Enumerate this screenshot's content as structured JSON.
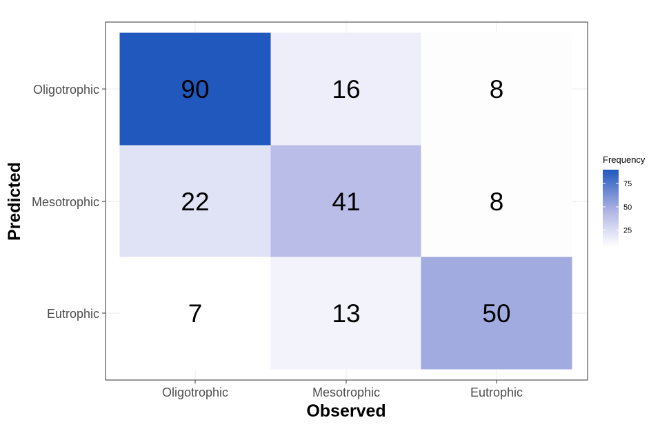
{
  "chart_data": {
    "type": "heatmap",
    "title": "",
    "xlabel": "Observed",
    "ylabel": "Predicted",
    "x_categories": [
      "Oligotrophic",
      "Mesotrophic",
      "Eutrophic"
    ],
    "y_categories": [
      "Oligotrophic",
      "Mesotrophic",
      "Eutrophic"
    ],
    "cells": [
      {
        "x": "Oligotrophic",
        "y": "Oligotrophic",
        "value": 90
      },
      {
        "x": "Mesotrophic",
        "y": "Oligotrophic",
        "value": 16
      },
      {
        "x": "Eutrophic",
        "y": "Oligotrophic",
        "value": 8
      },
      {
        "x": "Oligotrophic",
        "y": "Mesotrophic",
        "value": 22
      },
      {
        "x": "Mesotrophic",
        "y": "Mesotrophic",
        "value": 41
      },
      {
        "x": "Eutrophic",
        "y": "Mesotrophic",
        "value": 8
      },
      {
        "x": "Oligotrophic",
        "y": "Eutrophic",
        "value": 7
      },
      {
        "x": "Mesotrophic",
        "y": "Eutrophic",
        "value": 13
      },
      {
        "x": "Eutrophic",
        "y": "Eutrophic",
        "value": 50
      }
    ],
    "legend": {
      "title": "Frequency",
      "ticks": [
        25,
        50,
        75
      ],
      "position": "right",
      "range": [
        7,
        90
      ]
    },
    "color_low": "#ffffff",
    "color_high": "#2158be",
    "grid": true
  }
}
